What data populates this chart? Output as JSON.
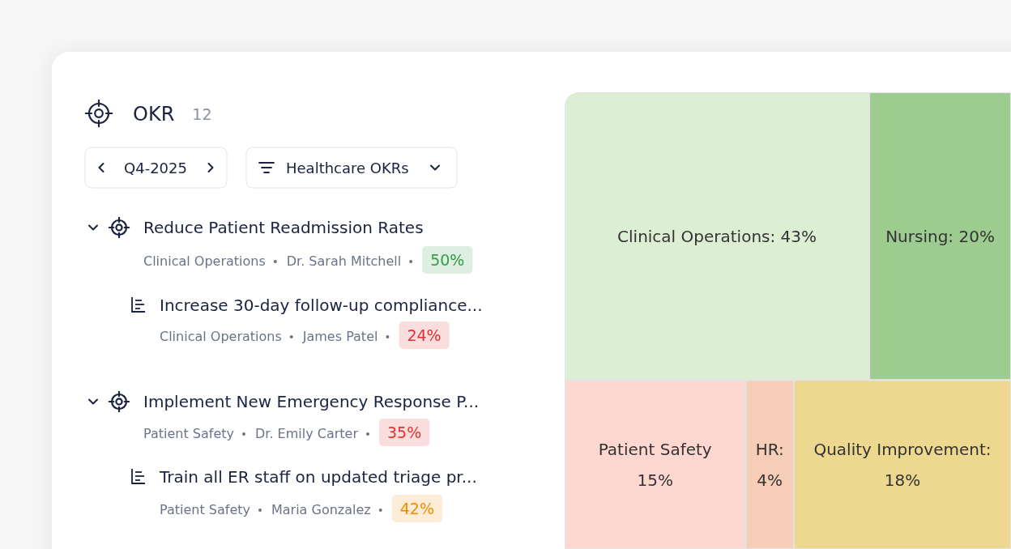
{
  "chart_data": [
    {
      "type": "other",
      "title": "OKR",
      "categories": [
        "Reduce Patient Readmission Rates",
        "Increase 30-day follow-up compliance...",
        "Implement New Emergency Response P...",
        "Train all ER staff on updated triage pr..."
      ],
      "values": [
        50,
        24,
        35,
        42
      ],
      "value_labels": [
        "50%",
        "24%",
        "35%",
        "42%"
      ],
      "colors": [
        "#2f9e44",
        "#e03131",
        "#e03131",
        "#f08c00"
      ],
      "annotations": [
        "12",
        "Q4-2025",
        "Healthcare OKRs",
        "Clinical Operations",
        "Dr. Sarah Mitchell",
        "Clinical Operations",
        "James Patel",
        "Patient Safety",
        "Dr. Emily Carter",
        "Patient Safety",
        "Maria Gonzalez"
      ]
    },
    {
      "type": "other",
      "values": [
        43,
        20,
        15,
        4,
        18
      ],
      "value_labels": [
        "Clinical Operations: 43%",
        "Nursing: 20%",
        "Patient Safety 15%",
        "HR: 4%",
        "Quality Improvement: 18%"
      ],
      "colors": [
        "#dcefd2",
        "#9ccc90",
        "#fdd7d0",
        "#f6cdb6",
        "#ecd98f"
      ]
    }
  ]
}
